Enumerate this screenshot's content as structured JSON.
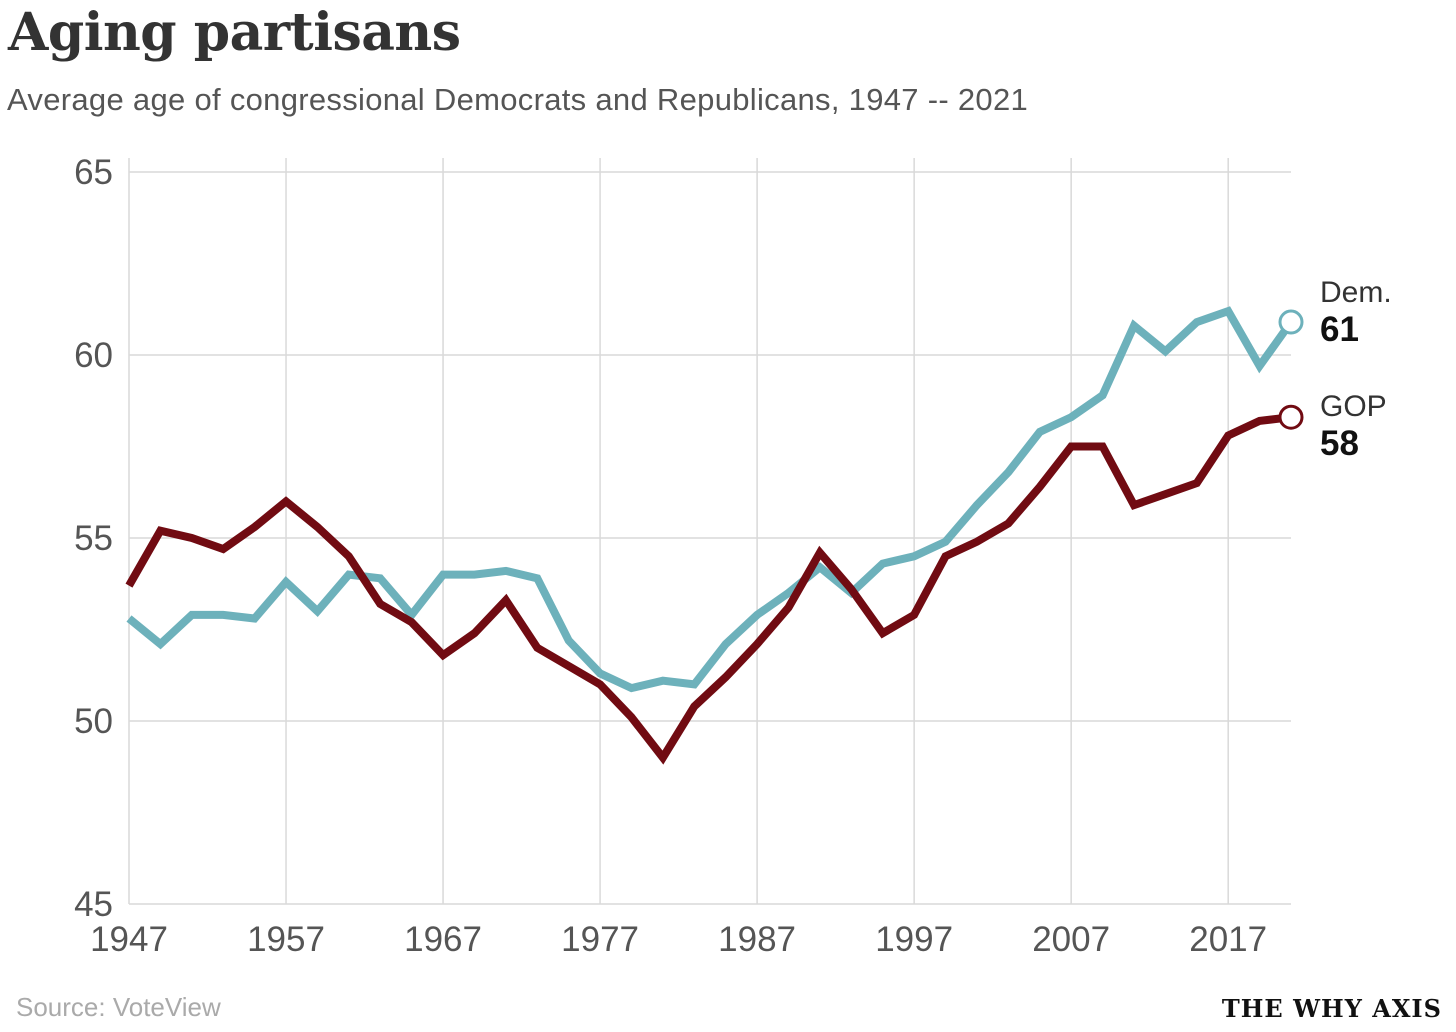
{
  "title": "Aging partisans",
  "subtitle": "Average age of congressional Democrats and Republicans, 1947 -- 2021",
  "source": "Source: VoteView",
  "brand": "THE WHY AXIS",
  "colors": {
    "dem": "#6db1bb",
    "gop": "#710b12",
    "grid": "#d9d9d9",
    "axis_text": "#555555"
  },
  "chart_data": {
    "type": "line",
    "title": "Aging partisans",
    "xlabel": "",
    "ylabel": "",
    "xlim": [
      1947,
      2021
    ],
    "ylim": [
      45,
      65
    ],
    "x_ticks": [
      1947,
      1957,
      1967,
      1977,
      1987,
      1997,
      2007,
      2017
    ],
    "y_ticks": [
      45,
      50,
      55,
      60,
      65
    ],
    "grid": true,
    "x": [
      1947,
      1949,
      1951,
      1953,
      1955,
      1957,
      1959,
      1961,
      1963,
      1965,
      1967,
      1969,
      1971,
      1973,
      1975,
      1977,
      1979,
      1981,
      1983,
      1985,
      1987,
      1989,
      1991,
      1993,
      1995,
      1997,
      1999,
      2001,
      2003,
      2005,
      2007,
      2009,
      2011,
      2013,
      2015,
      2017,
      2019,
      2021
    ],
    "series": [
      {
        "name": "Dem.",
        "label": "Dem.",
        "end_value_label": "61",
        "values": [
          52.8,
          52.1,
          52.9,
          52.9,
          52.8,
          53.8,
          53.0,
          54.0,
          53.9,
          52.9,
          54.0,
          54.0,
          54.1,
          53.9,
          52.2,
          51.3,
          50.9,
          51.1,
          51.0,
          52.1,
          52.9,
          53.5,
          54.2,
          53.5,
          54.3,
          54.5,
          54.9,
          55.9,
          56.8,
          57.9,
          58.3,
          58.9,
          60.8,
          60.1,
          60.9,
          61.2,
          59.7,
          60.9
        ]
      },
      {
        "name": "GOP",
        "label": "GOP",
        "end_value_label": "58",
        "values": [
          53.7,
          55.2,
          55.0,
          54.7,
          55.3,
          56.0,
          55.3,
          54.5,
          53.2,
          52.7,
          51.8,
          52.4,
          53.3,
          52.0,
          51.5,
          51.0,
          50.1,
          49.0,
          50.4,
          51.2,
          52.1,
          53.1,
          54.6,
          53.6,
          52.4,
          52.9,
          54.5,
          54.9,
          55.4,
          56.4,
          57.5,
          57.5,
          55.9,
          56.2,
          56.5,
          57.8,
          58.2,
          58.3
        ]
      }
    ]
  }
}
